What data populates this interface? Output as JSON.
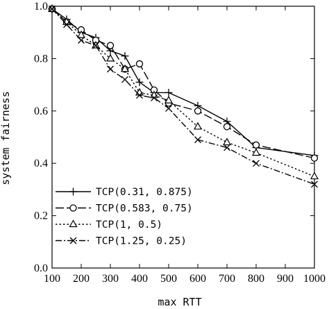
{
  "chart_data": {
    "type": "line",
    "title": "",
    "xlabel": "max RTT",
    "ylabel": "system fairness",
    "xlim": [
      100,
      1000
    ],
    "ylim": [
      0.0,
      1.0
    ],
    "x_ticks": [
      100,
      200,
      300,
      400,
      500,
      600,
      700,
      800,
      900,
      1000
    ],
    "x_tick_labels": [
      "100",
      "200",
      "300",
      "400",
      "500",
      "600",
      "700",
      "800",
      "900",
      "1000"
    ],
    "y_ticks": [
      0.0,
      0.2,
      0.4,
      0.6,
      0.8,
      1.0
    ],
    "y_tick_labels": [
      "0.0",
      "0.2",
      "0.4",
      "0.6",
      "0.8",
      "1.0"
    ],
    "grid": false,
    "legend_position": "bottom-left",
    "series": [
      {
        "name": "TCP(0.31, 0.875)",
        "marker": "plus",
        "dash": "solid",
        "x": [
          100,
          150,
          200,
          250,
          300,
          350,
          400,
          450,
          500,
          600,
          700,
          800,
          1000
        ],
        "y": [
          0.99,
          0.95,
          0.9,
          0.88,
          0.83,
          0.81,
          0.71,
          0.67,
          0.67,
          0.62,
          0.56,
          0.46,
          0.43
        ]
      },
      {
        "name": "TCP(0.583, 0.75)",
        "marker": "circle",
        "dash": "longdash",
        "x": [
          100,
          150,
          200,
          250,
          300,
          350,
          400,
          450,
          500,
          600,
          700,
          800,
          1000
        ],
        "y": [
          0.99,
          0.94,
          0.91,
          0.87,
          0.85,
          0.76,
          0.78,
          0.68,
          0.63,
          0.6,
          0.54,
          0.47,
          0.42
        ]
      },
      {
        "name": "TCP(1, 0.5)",
        "marker": "triangle",
        "dash": "dotted",
        "x": [
          100,
          150,
          200,
          250,
          300,
          350,
          400,
          450,
          500,
          600,
          700,
          800,
          1000
        ],
        "y": [
          0.99,
          0.94,
          0.89,
          0.85,
          0.8,
          0.76,
          0.67,
          0.66,
          0.64,
          0.54,
          0.48,
          0.44,
          0.35
        ]
      },
      {
        "name": "TCP(1.25, 0.25)",
        "marker": "cross",
        "dash": "dashdot",
        "x": [
          100,
          150,
          200,
          250,
          300,
          350,
          400,
          450,
          500,
          600,
          700,
          800,
          1000
        ],
        "y": [
          0.99,
          0.93,
          0.87,
          0.85,
          0.76,
          0.72,
          0.66,
          0.65,
          0.61,
          0.49,
          0.46,
          0.4,
          0.32
        ]
      }
    ]
  }
}
